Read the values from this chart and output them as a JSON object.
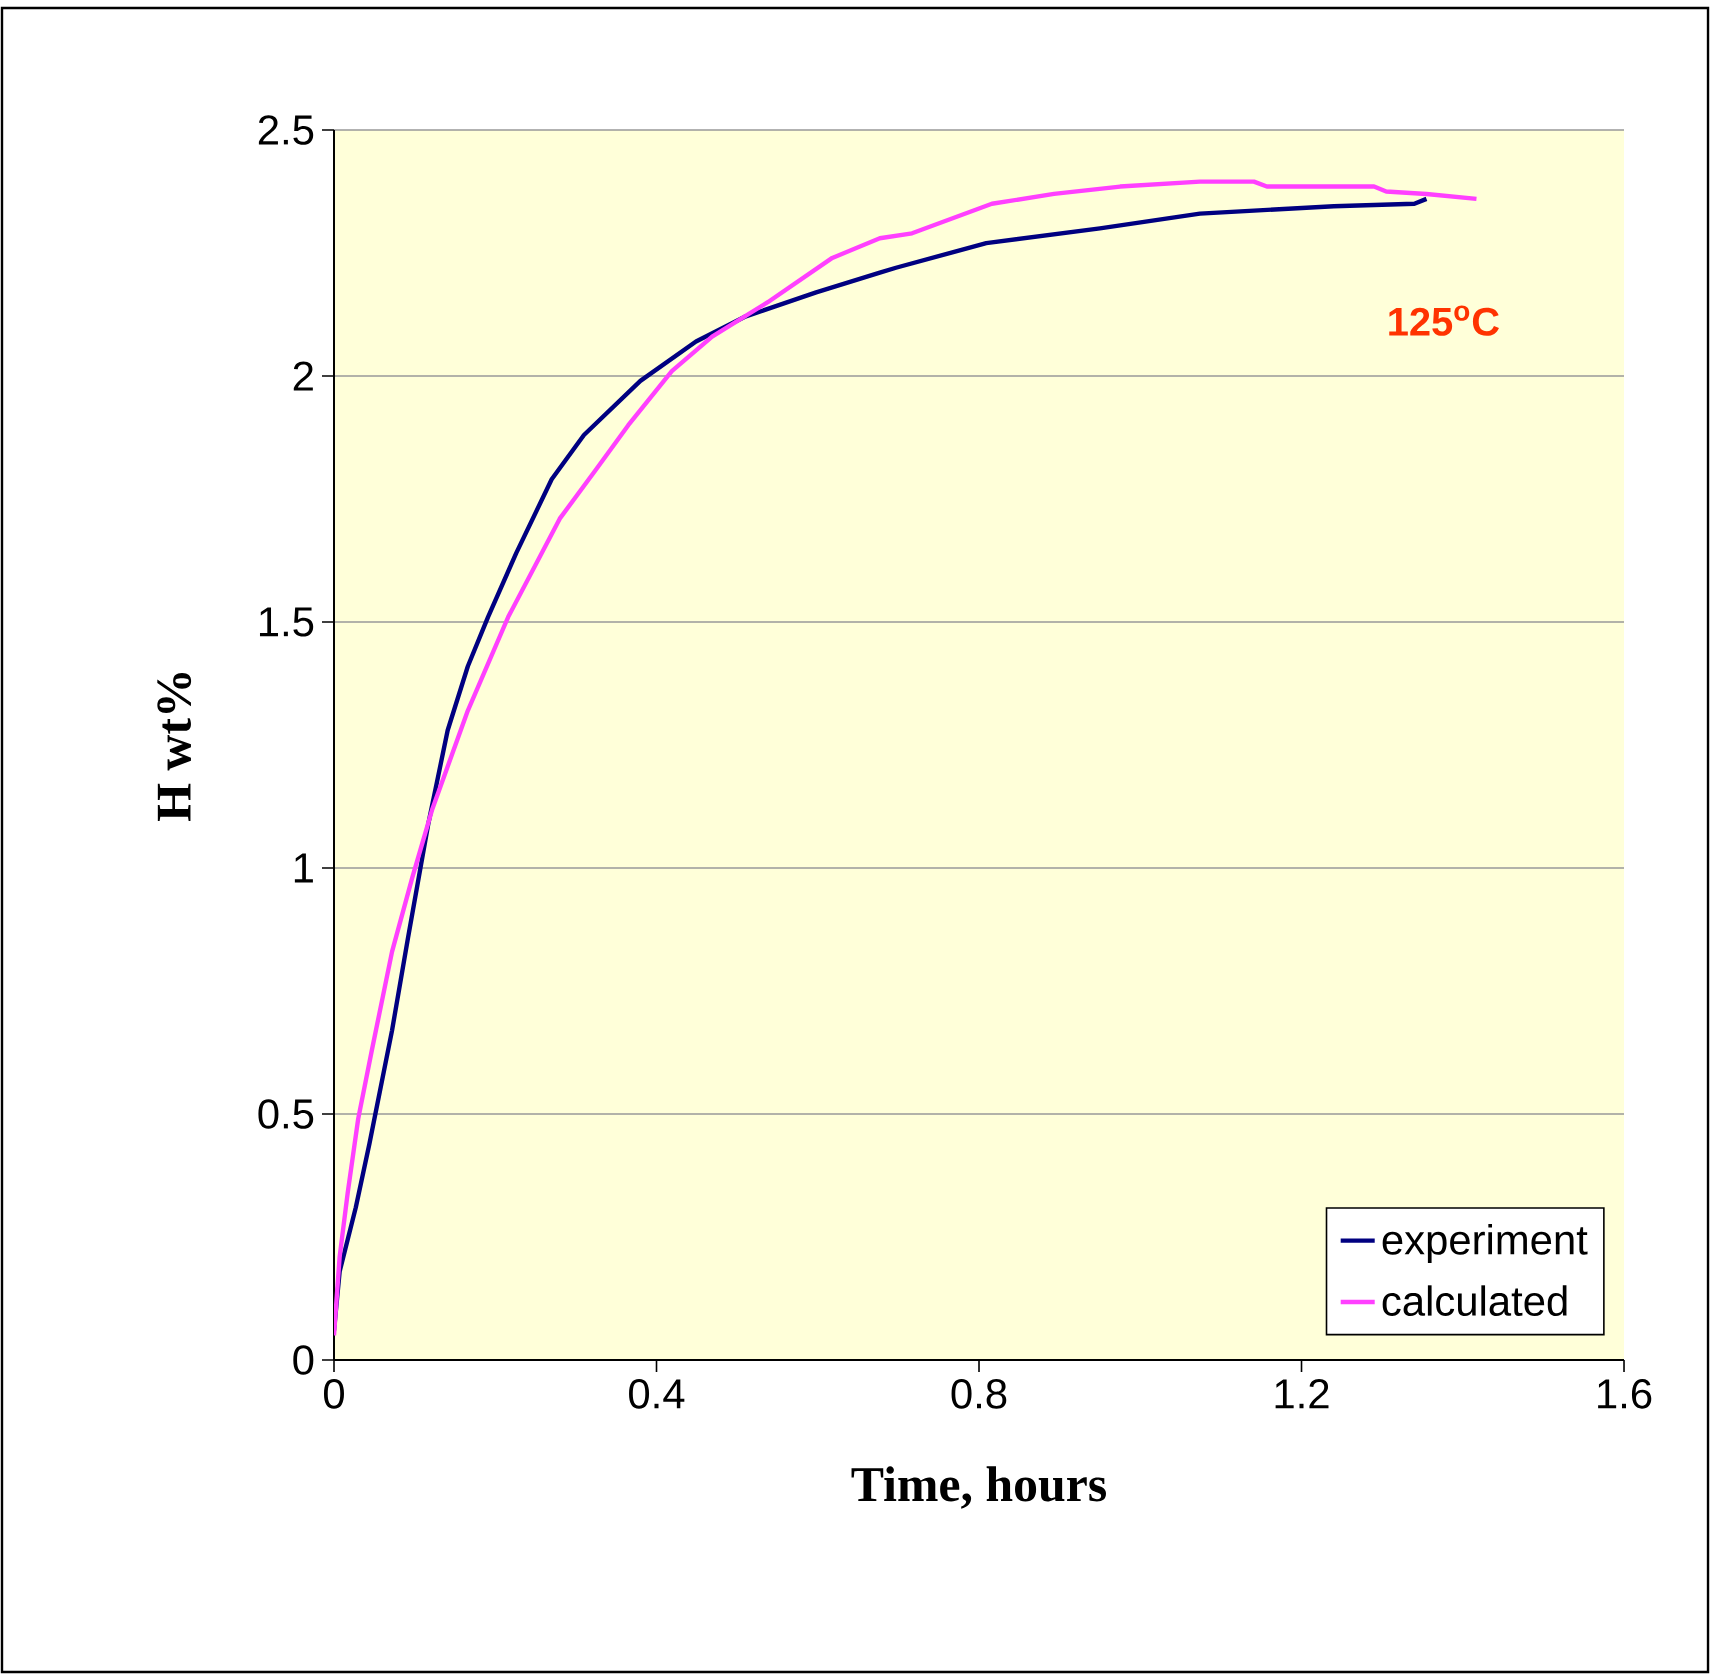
{
  "chart_data": {
    "type": "line",
    "xlabel": "Time, hours",
    "ylabel": "H wt%",
    "annotations": [
      "125$^{o}$C"
    ],
    "xlim": [
      0,
      1.6
    ],
    "xticks": [
      0,
      0.4,
      0.8,
      1.2,
      1.6
    ],
    "ylim": [
      0,
      2.5
    ],
    "yticks": [
      0,
      0.5,
      1,
      1.5,
      2,
      2.5
    ],
    "grid": "y",
    "legend": "bottom right",
    "line_style": "solid",
    "marker": "none",
    "series": [
      {
        "name": "experiment",
        "color": "#000080",
        "x": [
          0,
          0.007,
          0.027,
          0.044,
          0.072,
          0.092,
          0.117,
          0.141,
          0.166,
          0.191,
          0.226,
          0.27,
          0.31,
          0.38,
          0.449,
          0.509,
          0.598,
          0.677,
          0.697,
          0.809,
          0.95,
          1.074,
          1.24,
          1.34,
          1.355
        ],
        "values": [
          0.06,
          0.18,
          0.31,
          0.44,
          0.67,
          0.86,
          1.09,
          1.28,
          1.41,
          1.51,
          1.64,
          1.79,
          1.88,
          1.99,
          2.07,
          2.12,
          2.17,
          2.21,
          2.22,
          2.27,
          2.3,
          2.33,
          2.345,
          2.35,
          2.36
        ]
      },
      {
        "name": "calculated",
        "color": "#ff40ff",
        "x": [
          0,
          0.007,
          0.017,
          0.03,
          0.047,
          0.072,
          0.097,
          0.122,
          0.166,
          0.216,
          0.28,
          0.325,
          0.365,
          0.419,
          0.469,
          0.538,
          0.618,
          0.677,
          0.717,
          0.816,
          0.893,
          0.975,
          1.074,
          1.141,
          1.157,
          1.29,
          1.305,
          1.355,
          1.417
        ],
        "values": [
          0.05,
          0.21,
          0.34,
          0.49,
          0.63,
          0.83,
          0.98,
          1.12,
          1.32,
          1.51,
          1.71,
          1.81,
          1.9,
          2.01,
          2.08,
          2.15,
          2.24,
          2.28,
          2.29,
          2.35,
          2.37,
          2.385,
          2.395,
          2.395,
          2.385,
          2.385,
          2.375,
          2.37,
          2.36
        ]
      }
    ]
  }
}
